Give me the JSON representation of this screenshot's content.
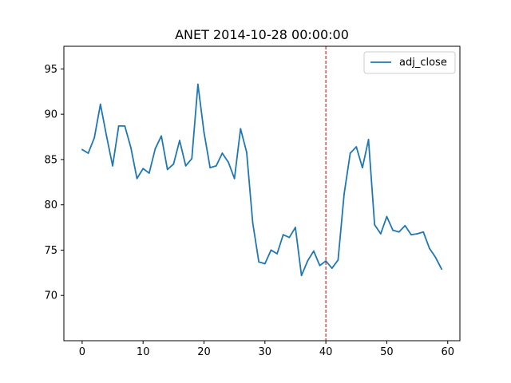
{
  "chart_data": {
    "type": "line",
    "title": "ANET 2014-10-28 00:00:00",
    "xlabel": "",
    "ylabel": "",
    "xlim": [
      -3,
      62
    ],
    "ylim": [
      65,
      97.5
    ],
    "x_ticks": [
      0,
      10,
      20,
      30,
      40,
      50,
      60
    ],
    "y_ticks": [
      70,
      75,
      80,
      85,
      90,
      95
    ],
    "grid": false,
    "legend": {
      "position": "top-right",
      "entries": [
        "adj_close"
      ]
    },
    "vline": {
      "x": 40,
      "color": "#d62728",
      "style": "dashed"
    },
    "series": [
      {
        "name": "adj_close",
        "color": "#1f77b4",
        "x": [
          0,
          1,
          2,
          3,
          4,
          5,
          6,
          7,
          8,
          9,
          10,
          11,
          12,
          13,
          14,
          15,
          16,
          17,
          18,
          19,
          20,
          21,
          22,
          23,
          24,
          25,
          26,
          27,
          28,
          29,
          30,
          31,
          32,
          33,
          34,
          35,
          36,
          37,
          38,
          39,
          40,
          41,
          42,
          43,
          44,
          45,
          46,
          47,
          48,
          49,
          50,
          51,
          52,
          53,
          54,
          55,
          56,
          57,
          58,
          59
        ],
        "values": [
          86.1,
          85.7,
          87.4,
          91.1,
          87.6,
          84.3,
          88.7,
          88.7,
          86.3,
          82.9,
          84.0,
          83.5,
          86.2,
          87.6,
          83.9,
          84.5,
          87.1,
          84.3,
          85.1,
          93.3,
          88.0,
          84.1,
          84.3,
          85.7,
          84.7,
          82.9,
          88.4,
          85.8,
          78.0,
          73.7,
          73.5,
          75.0,
          74.6,
          76.7,
          76.4,
          77.5,
          72.2,
          73.8,
          74.9,
          73.3,
          73.8,
          73.0,
          73.9,
          81.2,
          85.7,
          86.4,
          84.1,
          87.2,
          77.8,
          76.8,
          78.7,
          77.2,
          77.0,
          77.7,
          76.7,
          76.8,
          77.0,
          75.2,
          74.2,
          72.9
        ]
      }
    ]
  }
}
